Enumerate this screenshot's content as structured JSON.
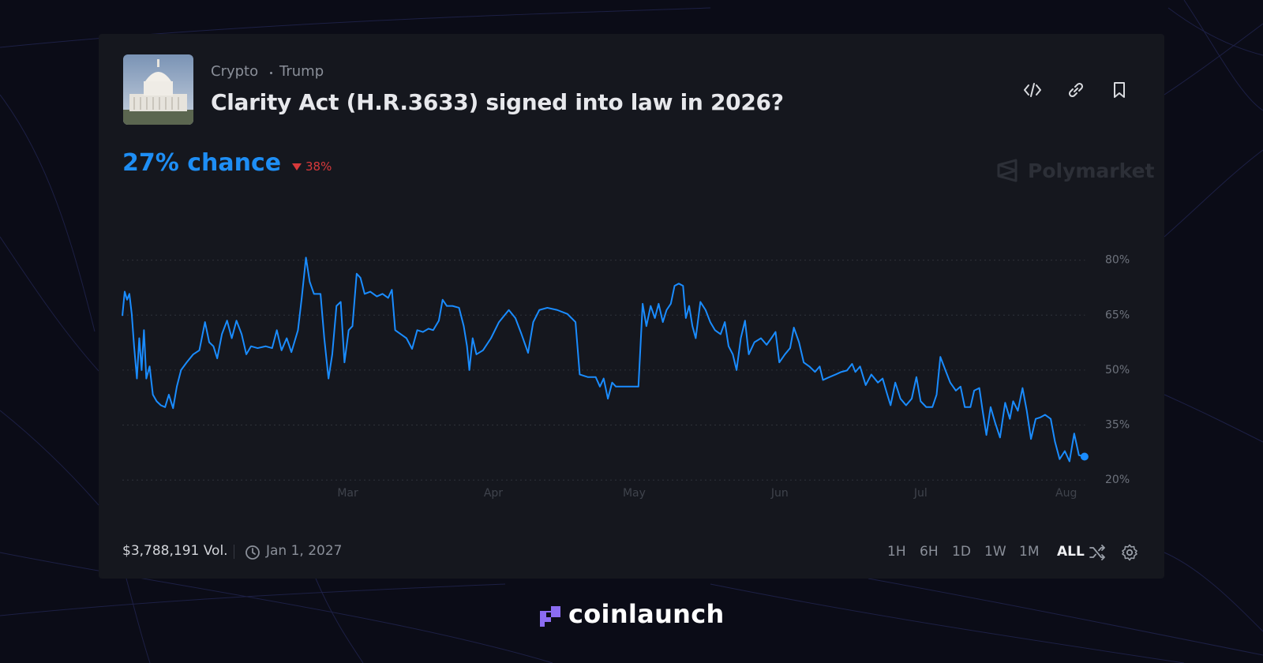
{
  "header": {
    "tags": [
      "Crypto",
      "Trump"
    ],
    "title": "Clarity Act (H.R.3633) signed into law in 2026?",
    "chance": "27% chance",
    "change": "38%",
    "brand": "Polymarket"
  },
  "chart_data": {
    "type": "line",
    "color": "#1a8cff",
    "x": [
      11.0,
      11.5,
      12.0,
      12.5,
      13.0,
      13.5,
      14.1,
      14.6,
      15.1,
      15.6,
      16.1,
      16.8,
      17.5,
      18.3,
      19.2,
      20.1,
      20.9,
      21.8,
      22.6,
      23.5,
      24.7,
      26.1,
      27.4,
      28.6,
      29.5,
      30.4,
      31.2,
      32.2,
      33.3,
      34.3,
      35.3,
      36.4,
      37.4,
      38.4,
      39.8,
      41.5,
      42.9,
      43.9,
      44.9,
      46.0,
      47.0,
      48.4,
      49.2,
      50.1,
      50.9,
      51.8,
      53.2,
      54.0,
      54.9,
      55.7,
      56.6,
      57.5,
      58.3,
      59.2,
      60.0,
      60.9,
      61.7,
      62.6,
      63.8,
      65.2,
      66.4,
      67.6,
      68.4,
      69.1,
      70.3,
      71.5,
      72.7,
      73.8,
      75.0,
      76.2,
      77.2,
      78.4,
      79.2,
      80.1,
      81.3,
      82.7,
      83.7,
      84.4,
      84.9,
      85.6,
      86.4,
      87.8,
      89.5,
      91.2,
      93.3,
      94.7,
      96.0,
      97.4,
      98.5,
      99.8,
      101.5,
      103.6,
      105.8,
      107.5,
      108.4,
      110.1,
      111.8,
      112.7,
      113.5,
      114.4,
      115.3,
      116.1,
      117.8,
      120.9,
      121.8,
      122.6,
      123.5,
      124.4,
      125.2,
      126.1,
      126.9,
      127.8,
      128.6,
      129.5,
      130.4,
      131.0,
      131.7,
      132.4,
      133.1,
      134.1,
      135.2,
      136.2,
      137.2,
      138.4,
      139.3,
      140.1,
      141.0,
      141.8,
      142.7,
      143.6,
      144.4,
      145.6,
      147.0,
      148.2,
      149.2,
      150.1,
      150.9,
      152.1,
      153.2,
      154.0,
      155.1,
      156.1,
      157.3,
      158.5,
      159.5,
      160.2,
      161.6,
      162.9,
      164.1,
      165.3,
      166.4,
      167.1,
      168.1,
      169.3,
      170.5,
      171.9,
      172.9,
      173.9,
      174.6,
      175.6,
      176.7,
      177.9,
      179.1,
      180.1,
      181.0,
      182.2,
      183.5,
      184.4,
      185.2,
      186.3,
      187.3,
      188.5,
      189.5,
      190.4,
      191.6,
      192.4,
      193.5,
      194.2,
      195.0,
      195.9,
      196.9,
      197.9,
      199.0,
      200.0,
      200.7,
      201.7,
      202.7,
      203.6,
      204.5,
      205.5,
      206.5,
      207.5,
      208.7,
      209.6,
      210.6,
      211.7,
      212.7,
      213.7,
      214.7,
      215.9
    ],
    "values": [
      64.8,
      71.4,
      69.2,
      70.8,
      65.3,
      56.5,
      47.7,
      58.7,
      50,
      60.9,
      47.7,
      51,
      43.3,
      41.5,
      40.4,
      39.9,
      43.3,
      39.6,
      45.5,
      50,
      52.1,
      54.3,
      55.4,
      63.1,
      57.6,
      56.5,
      53.2,
      59.8,
      63.5,
      58.7,
      63.5,
      59.8,
      54.3,
      56.5,
      56,
      56.5,
      56,
      60.9,
      55.4,
      58.7,
      54.9,
      60.9,
      69.7,
      80.7,
      74.1,
      70.8,
      70.8,
      58.7,
      47.7,
      54.3,
      67.5,
      68.6,
      52.1,
      60.9,
      62,
      76.3,
      75.2,
      70.8,
      71.4,
      70.1,
      70.8,
      69.7,
      71.9,
      60.9,
      59.8,
      58.7,
      55.8,
      60.9,
      60.4,
      61.3,
      60.9,
      63.5,
      69.2,
      67.5,
      67.5,
      67,
      62,
      56.5,
      50,
      58.7,
      54.3,
      55.4,
      58.7,
      63.1,
      66.4,
      64.2,
      59.8,
      54.7,
      63.1,
      66.4,
      67,
      66.4,
      65.3,
      63.1,
      48.8,
      48.1,
      48.1,
      45.5,
      47.7,
      42.2,
      46.6,
      45.5,
      45.5,
      45.5,
      68.1,
      62,
      67.5,
      64.2,
      68.1,
      63.1,
      66.4,
      68.1,
      73,
      73.6,
      73,
      64.2,
      67.5,
      62,
      58.7,
      68.6,
      66.4,
      63.1,
      60.9,
      59.8,
      63.1,
      56.5,
      54.3,
      50,
      58.7,
      63.5,
      54.3,
      57.6,
      58.7,
      56.9,
      58.7,
      60.4,
      52.1,
      54.3,
      56,
      61.6,
      57.6,
      52.1,
      51,
      49.5,
      51,
      47.3,
      48.1,
      48.8,
      49.5,
      49.9,
      51.7,
      49.5,
      51,
      45.9,
      48.8,
      46.6,
      47.7,
      43.3,
      40.4,
      46.6,
      42.2,
      40.4,
      42.2,
      48.1,
      41.5,
      39.9,
      39.9,
      43.3,
      53.6,
      49.9,
      46.6,
      44.4,
      45.5,
      39.9,
      39.9,
      44.4,
      45.1,
      38.9,
      32.3,
      39.9,
      35.5,
      31.6,
      41.1,
      36.7,
      41.5,
      38.9,
      45.1,
      38.9,
      31.2,
      36.7,
      37.1,
      37.8,
      36.7,
      30.5,
      25.7,
      27.9,
      25.1,
      32.7,
      26.8,
      26.4
    ],
    "xlim": [
      11,
      216
    ],
    "xticks": [
      {
        "value": 59,
        "label": "Mar"
      },
      {
        "value": 90,
        "label": "Apr"
      },
      {
        "value": 120,
        "label": "May"
      },
      {
        "value": 151,
        "label": "Jun"
      },
      {
        "value": 181,
        "label": "Jul"
      },
      {
        "value": 212,
        "label": "Aug"
      }
    ],
    "ylim": [
      20,
      80
    ],
    "yticks": [
      {
        "value": 20,
        "label": "20%"
      },
      {
        "value": 35,
        "label": "35%"
      },
      {
        "value": 50,
        "label": "50%"
      },
      {
        "value": 65,
        "label": "65%"
      },
      {
        "value": 80,
        "label": "80%"
      }
    ],
    "grid": true
  },
  "footer": {
    "volume": "$3,788,191 Vol.",
    "end_date": "Jan 1, 2027",
    "ranges": [
      "1H",
      "6H",
      "1D",
      "1W",
      "1M",
      "ALL"
    ]
  },
  "watermark": "coinlaunch"
}
